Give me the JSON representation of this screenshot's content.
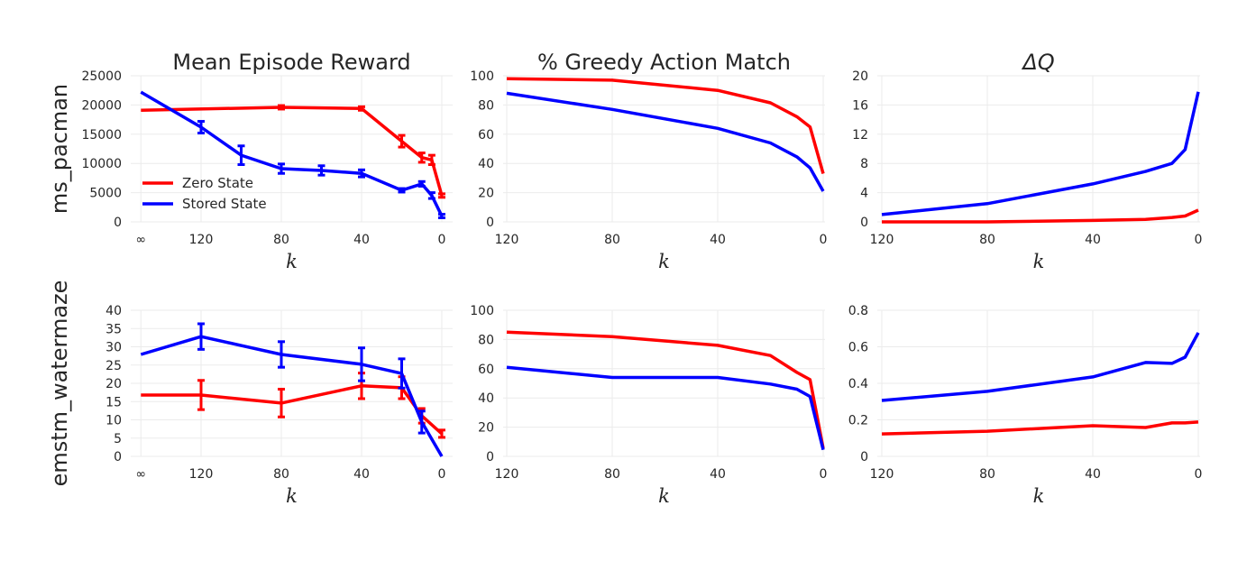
{
  "legend": {
    "entries": [
      {
        "name": "Zero State",
        "color": "#ff0000"
      },
      {
        "name": "Stored State",
        "color": "#0000ff"
      }
    ],
    "placement": "lower-left of first panel"
  },
  "chart_data": [
    {
      "type": "line",
      "title": "Mean Episode Reward",
      "row_label": "ms_pacman",
      "xlabel": "k",
      "xticks": [
        "∞",
        "120",
        "80",
        "40",
        "0"
      ],
      "yticks": [
        "0",
        "5000",
        "10000",
        "15000",
        "20000",
        "25000"
      ],
      "ylim": [
        0,
        25000
      ],
      "grid": true,
      "series": [
        {
          "name": "Zero State",
          "color": "#ff0000",
          "x": [
            "∞",
            80,
            40,
            20,
            10,
            5,
            0
          ],
          "y": [
            19100,
            19600,
            19400,
            13800,
            11000,
            10600,
            4500
          ],
          "yerr": [
            null,
            300,
            300,
            1000,
            800,
            800,
            300
          ]
        },
        {
          "name": "Stored State",
          "color": "#0000ff",
          "x": [
            "∞",
            120,
            100,
            80,
            60,
            40,
            20,
            10,
            5,
            0
          ],
          "y": [
            22200,
            16200,
            11400,
            9100,
            8800,
            8300,
            5400,
            6500,
            4500,
            1000
          ],
          "yerr": [
            null,
            1000,
            1600,
            800,
            800,
            600,
            300,
            400,
            500,
            300
          ]
        }
      ]
    },
    {
      "type": "line",
      "title": "% Greedy Action Match",
      "xlabel": "k",
      "xticks": [
        "120",
        "80",
        "40",
        "0"
      ],
      "yticks": [
        "0",
        "20",
        "40",
        "60",
        "80",
        "100"
      ],
      "ylim": [
        0,
        100
      ],
      "grid": true,
      "series": [
        {
          "name": "Zero State",
          "color": "#ff0000",
          "x": [
            120,
            80,
            40,
            20,
            10,
            5,
            0
          ],
          "y": [
            98,
            97,
            90,
            81.5,
            72,
            65,
            33
          ]
        },
        {
          "name": "Stored State",
          "color": "#0000ff",
          "x": [
            120,
            80,
            40,
            20,
            10,
            5,
            0
          ],
          "y": [
            88,
            77,
            64,
            54,
            44.5,
            37,
            21
          ]
        }
      ]
    },
    {
      "type": "line",
      "title": "ΔQ",
      "xlabel": "k",
      "xticks": [
        "120",
        "80",
        "40",
        "0"
      ],
      "yticks": [
        "0",
        "4",
        "8",
        "12",
        "16",
        "20"
      ],
      "ylim": [
        0,
        20
      ],
      "grid": true,
      "series": [
        {
          "name": "Zero State",
          "color": "#ff0000",
          "x": [
            120,
            80,
            40,
            20,
            10,
            5,
            0
          ],
          "y": [
            0,
            0,
            0.2,
            0.35,
            0.6,
            0.8,
            1.6
          ]
        },
        {
          "name": "Stored State",
          "color": "#0000ff",
          "x": [
            120,
            80,
            40,
            20,
            10,
            5,
            0
          ],
          "y": [
            1.0,
            2.5,
            5.2,
            6.9,
            8.0,
            9.9,
            17.8
          ]
        }
      ]
    },
    {
      "type": "line",
      "title": "",
      "row_label": "emstm_watermaze",
      "xlabel": "k",
      "xticks": [
        "∞",
        "120",
        "80",
        "40",
        "0"
      ],
      "yticks": [
        "0",
        "5",
        "10",
        "15",
        "20",
        "25",
        "30",
        "35",
        "40"
      ],
      "ylim": [
        0,
        40
      ],
      "grid": true,
      "series": [
        {
          "name": "Zero State",
          "color": "#ff0000",
          "x": [
            "∞",
            120,
            80,
            40,
            20,
            10,
            0
          ],
          "y": [
            16.8,
            16.8,
            14.6,
            19.3,
            18.8,
            11.1,
            6.2
          ],
          "yerr": [
            null,
            4,
            3.8,
            3.5,
            3,
            2,
            1
          ]
        },
        {
          "name": "Stored State",
          "color": "#0000ff",
          "x": [
            "∞",
            120,
            80,
            40,
            20,
            10,
            0
          ],
          "y": [
            27.9,
            32.8,
            27.9,
            25.2,
            22.7,
            9.4,
            0
          ],
          "yerr": [
            null,
            3.5,
            3.5,
            4.5,
            4,
            3,
            null
          ]
        }
      ]
    },
    {
      "type": "line",
      "title": "",
      "xlabel": "k",
      "xticks": [
        "120",
        "80",
        "40",
        "0"
      ],
      "yticks": [
        "0",
        "20",
        "40",
        "60",
        "80",
        "100"
      ],
      "ylim": [
        0,
        100
      ],
      "grid": true,
      "series": [
        {
          "name": "Zero State",
          "color": "#ff0000",
          "x": [
            120,
            80,
            40,
            20,
            10,
            5,
            0
          ],
          "y": [
            85,
            82,
            76,
            69,
            57.5,
            52.5,
            5.5
          ]
        },
        {
          "name": "Stored State",
          "color": "#0000ff",
          "x": [
            120,
            80,
            40,
            20,
            10,
            5,
            0
          ],
          "y": [
            61,
            54,
            54,
            49.5,
            46,
            41,
            4.5
          ]
        }
      ]
    },
    {
      "type": "line",
      "title": "",
      "xlabel": "k",
      "xticks": [
        "120",
        "80",
        "40",
        "0"
      ],
      "yticks": [
        "0",
        "0.2",
        "0.4",
        "0.6",
        "0.8"
      ],
      "ylim": [
        0,
        0.8
      ],
      "grid": true,
      "series": [
        {
          "name": "Zero State",
          "color": "#ff0000",
          "x": [
            120,
            80,
            40,
            20,
            10,
            5,
            0
          ],
          "y": [
            0.123,
            0.138,
            0.168,
            0.158,
            0.183,
            0.183,
            0.188
          ]
        },
        {
          "name": "Stored State",
          "color": "#0000ff",
          "x": [
            120,
            80,
            40,
            20,
            10,
            5,
            0
          ],
          "y": [
            0.306,
            0.356,
            0.435,
            0.514,
            0.509,
            0.543,
            0.677
          ]
        }
      ]
    }
  ]
}
